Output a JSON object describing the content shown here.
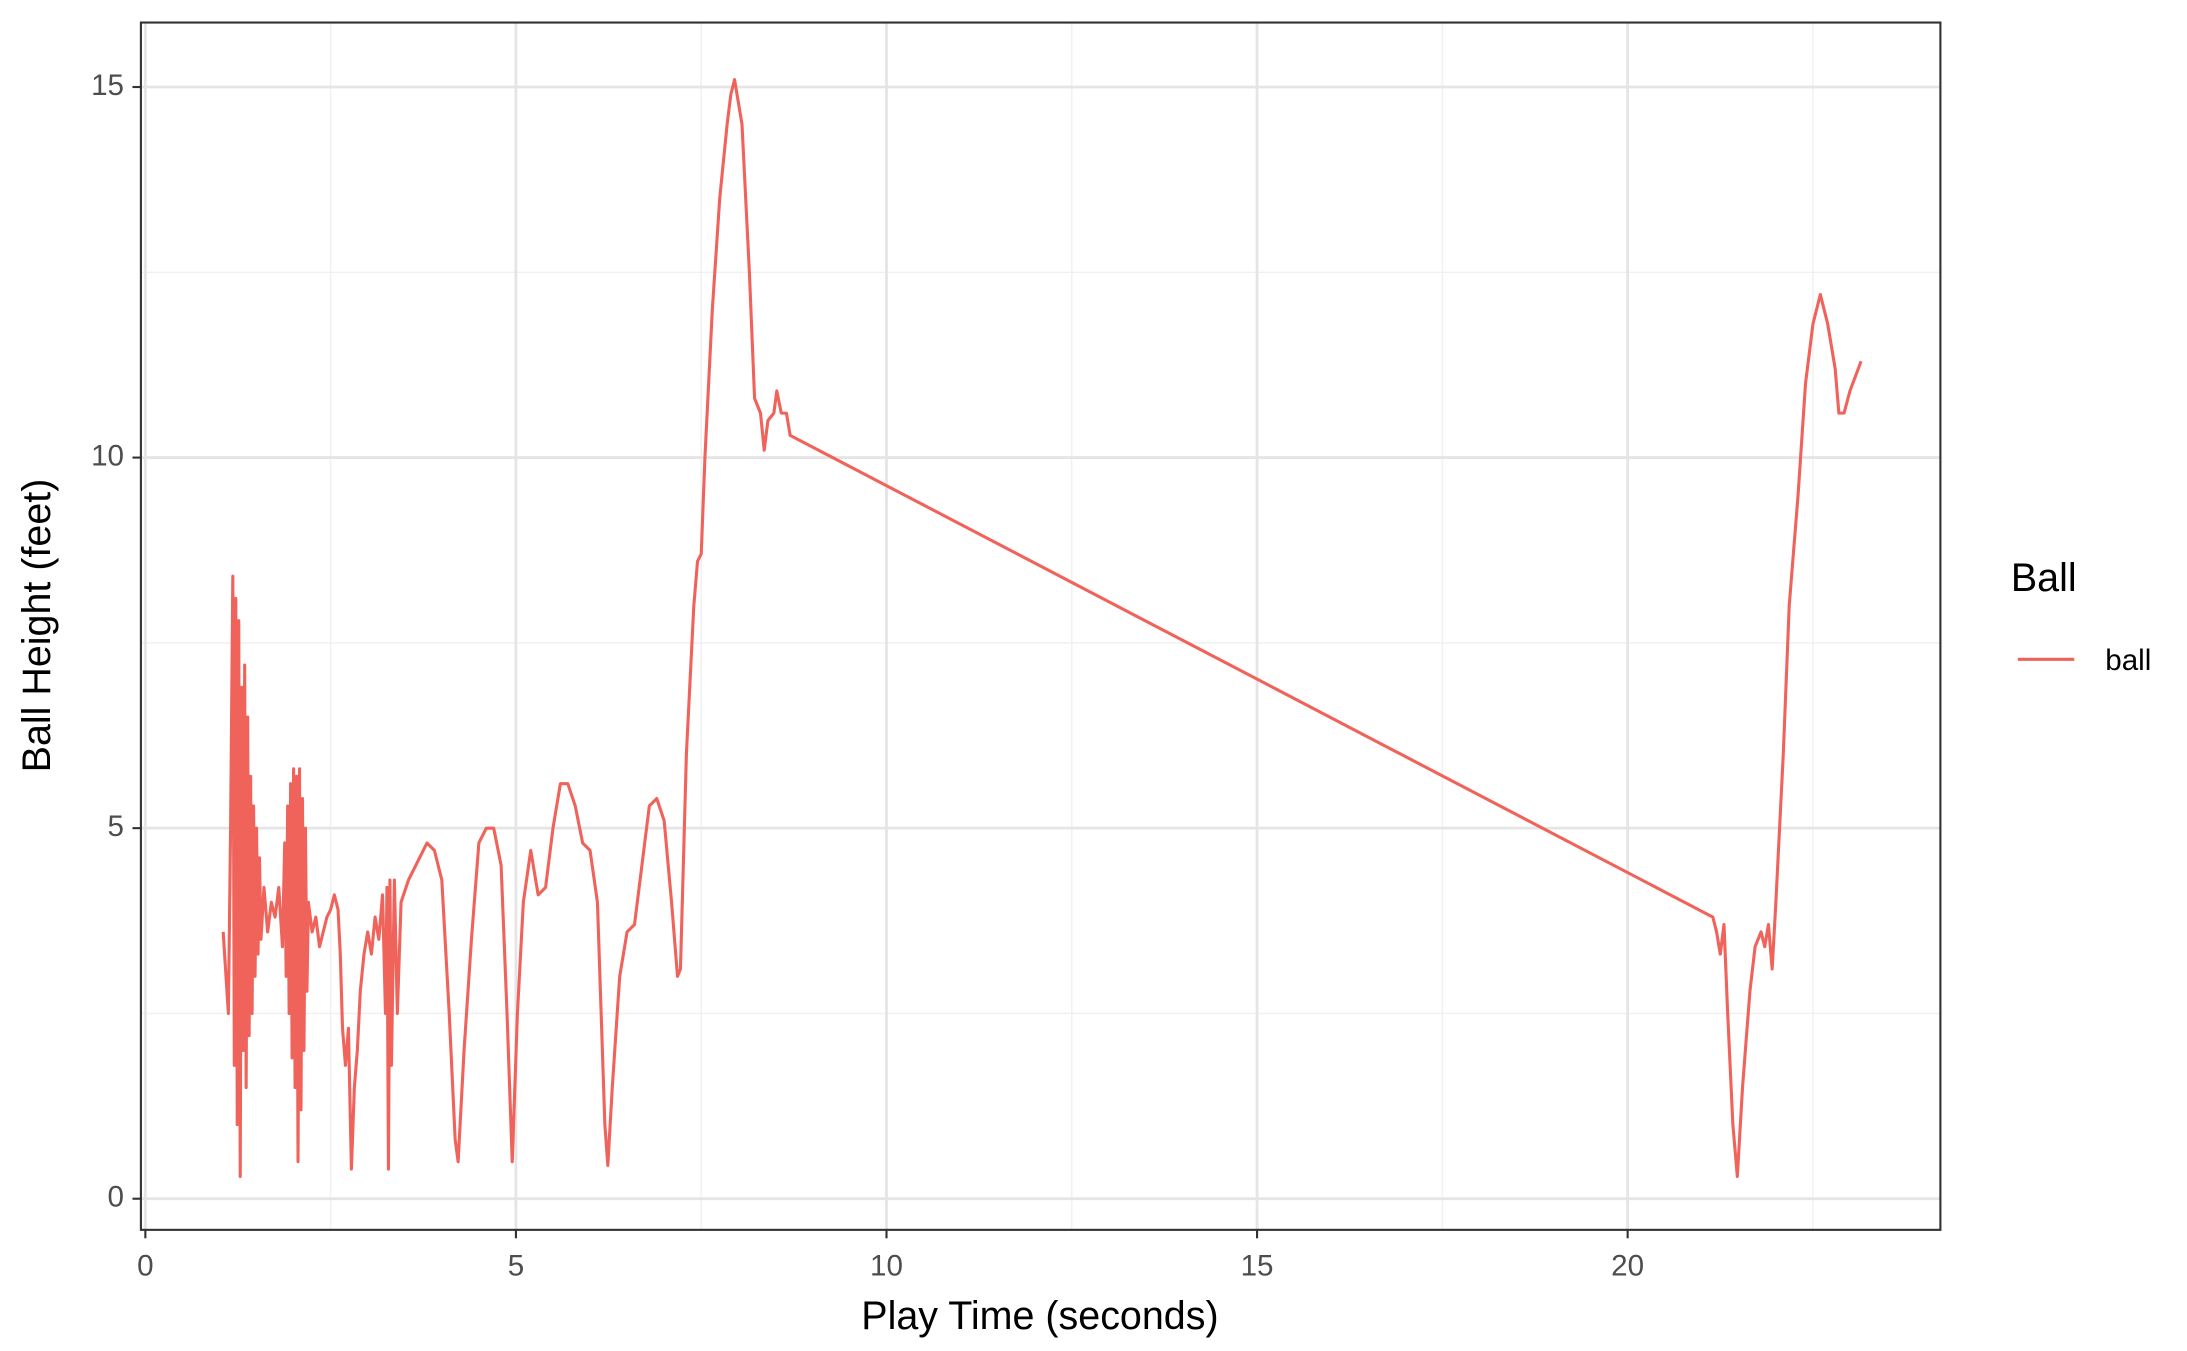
{
  "chart_data": {
    "type": "line",
    "x_label": "Play Time (seconds)",
    "y_label": "Ball Height (feet)",
    "legend_title": "Ball",
    "legend_position": "right",
    "grid": true,
    "xlim": [
      -0.06,
      24.22
    ],
    "ylim": [
      -0.42,
      15.87
    ],
    "xticks": [
      0,
      5,
      10,
      15,
      20
    ],
    "yticks": [
      0,
      5,
      10,
      15
    ],
    "xminorticks": [
      2.5,
      7.5,
      12.5,
      17.5,
      22.5
    ],
    "yminorticks": [
      2.5,
      7.5,
      12.5
    ],
    "x": [
      1.05,
      1.12,
      1.15,
      1.18,
      1.2,
      1.22,
      1.24,
      1.26,
      1.28,
      1.3,
      1.32,
      1.34,
      1.36,
      1.38,
      1.4,
      1.42,
      1.44,
      1.46,
      1.48,
      1.5,
      1.52,
      1.54,
      1.56,
      1.6,
      1.65,
      1.7,
      1.75,
      1.8,
      1.85,
      1.88,
      1.9,
      1.92,
      1.94,
      1.96,
      1.98,
      2.0,
      2.02,
      2.04,
      2.06,
      2.08,
      2.1,
      2.12,
      2.14,
      2.16,
      2.18,
      2.2,
      2.25,
      2.3,
      2.35,
      2.4,
      2.45,
      2.5,
      2.55,
      2.6,
      2.63,
      2.66,
      2.7,
      2.74,
      2.78,
      2.82,
      2.86,
      2.9,
      2.95,
      3.0,
      3.05,
      3.1,
      3.15,
      3.2,
      3.24,
      3.26,
      3.28,
      3.3,
      3.32,
      3.36,
      3.4,
      3.45,
      3.55,
      3.7,
      3.8,
      3.9,
      4.0,
      4.1,
      4.18,
      4.22,
      4.3,
      4.4,
      4.5,
      4.6,
      4.7,
      4.8,
      4.88,
      4.95,
      5.02,
      5.1,
      5.2,
      5.3,
      5.4,
      5.5,
      5.6,
      5.7,
      5.8,
      5.9,
      6.0,
      6.1,
      6.2,
      6.24,
      6.3,
      6.4,
      6.5,
      6.6,
      6.7,
      6.8,
      6.9,
      7.0,
      7.1,
      7.18,
      7.22,
      7.3,
      7.4,
      7.45,
      7.5,
      7.55,
      7.65,
      7.75,
      7.85,
      7.9,
      7.95,
      8.05,
      8.15,
      8.22,
      8.3,
      8.35,
      8.4,
      8.48,
      8.52,
      8.58,
      8.65,
      8.7,
      21.15,
      21.2,
      21.25,
      21.3,
      21.35,
      21.42,
      21.48,
      21.55,
      21.65,
      21.72,
      21.8,
      21.85,
      21.9,
      21.95,
      22.0,
      22.1,
      22.18,
      22.3,
      22.4,
      22.5,
      22.6,
      22.7,
      22.8,
      22.85,
      22.92,
      23.0,
      23.15
    ],
    "series": [
      {
        "name": "ball",
        "color": "#f0635b",
        "values": [
          3.6,
          2.5,
          5.0,
          8.4,
          1.8,
          8.1,
          1.0,
          7.8,
          0.3,
          6.9,
          2.0,
          7.2,
          1.5,
          6.5,
          2.2,
          5.7,
          2.5,
          5.3,
          3.0,
          5.0,
          3.3,
          4.6,
          3.5,
          4.2,
          3.6,
          4.0,
          3.8,
          4.2,
          3.4,
          4.8,
          3.0,
          5.3,
          2.5,
          5.6,
          1.9,
          5.8,
          1.5,
          5.7,
          0.5,
          5.8,
          1.2,
          5.4,
          2.0,
          5.0,
          2.8,
          4.0,
          3.6,
          3.8,
          3.4,
          3.6,
          3.8,
          3.9,
          4.1,
          3.9,
          3.3,
          2.3,
          1.8,
          2.3,
          0.4,
          1.5,
          2.0,
          2.8,
          3.3,
          3.6,
          3.3,
          3.8,
          3.5,
          4.1,
          2.5,
          4.2,
          0.4,
          4.3,
          1.8,
          4.3,
          2.5,
          4.0,
          4.3,
          4.6,
          4.8,
          4.7,
          4.3,
          2.5,
          0.8,
          0.5,
          2.0,
          3.5,
          4.8,
          5.0,
          5.0,
          4.5,
          2.5,
          0.5,
          2.5,
          4.0,
          4.7,
          4.1,
          4.2,
          5.0,
          5.6,
          5.6,
          5.3,
          4.8,
          4.7,
          4.0,
          1.0,
          0.45,
          1.5,
          3.0,
          3.6,
          3.7,
          4.5,
          5.3,
          5.4,
          5.1,
          4.0,
          3.0,
          3.1,
          6.0,
          8.0,
          8.6,
          8.7,
          10.0,
          12.0,
          13.5,
          14.5,
          14.9,
          15.1,
          14.5,
          12.5,
          10.8,
          10.6,
          10.1,
          10.5,
          10.6,
          10.9,
          10.6,
          10.6,
          10.3,
          3.8,
          3.6,
          3.3,
          3.7,
          2.5,
          1.0,
          0.3,
          1.5,
          2.8,
          3.4,
          3.6,
          3.4,
          3.7,
          3.1,
          4.0,
          6.0,
          8.0,
          9.5,
          11.0,
          11.8,
          12.2,
          11.8,
          11.2,
          10.6,
          10.6,
          10.9,
          11.3
        ]
      }
    ]
  }
}
